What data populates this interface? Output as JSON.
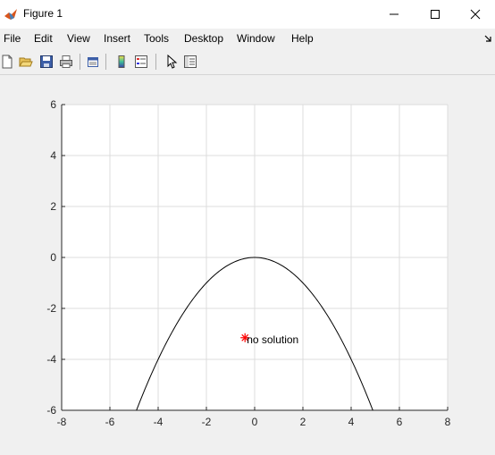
{
  "window": {
    "title": "Figure 1"
  },
  "menu": [
    "File",
    "Edit",
    "View",
    "Insert",
    "Tools",
    "Desktop",
    "Window",
    "Help"
  ],
  "toolbar": {
    "buttons": [
      "new-figure",
      "open-file",
      "save",
      "print",
      "link-plot",
      "colorbar",
      "legend",
      "edit-plot",
      "property-inspector"
    ]
  },
  "chart_data": {
    "type": "line",
    "grid": true,
    "xlim": [
      -8,
      8
    ],
    "ylim": [
      -6,
      6
    ],
    "xticks": [
      "-8",
      "-6",
      "-4",
      "-2",
      "0",
      "2",
      "4",
      "6",
      "8"
    ],
    "yticks": [
      "6",
      "4",
      "2",
      "0",
      "-2",
      "-4",
      "-6"
    ],
    "series": [
      {
        "equation": "y = -0.25 x^2",
        "x_range": [
          -4.9,
          4.9
        ],
        "color": "#000000"
      }
    ],
    "marker": {
      "x": -0.4,
      "y": -3.15,
      "symbol": "*",
      "color": "#ff0000"
    },
    "annotation": {
      "text": "no solution",
      "x": -0.4,
      "y": -3.15
    }
  }
}
